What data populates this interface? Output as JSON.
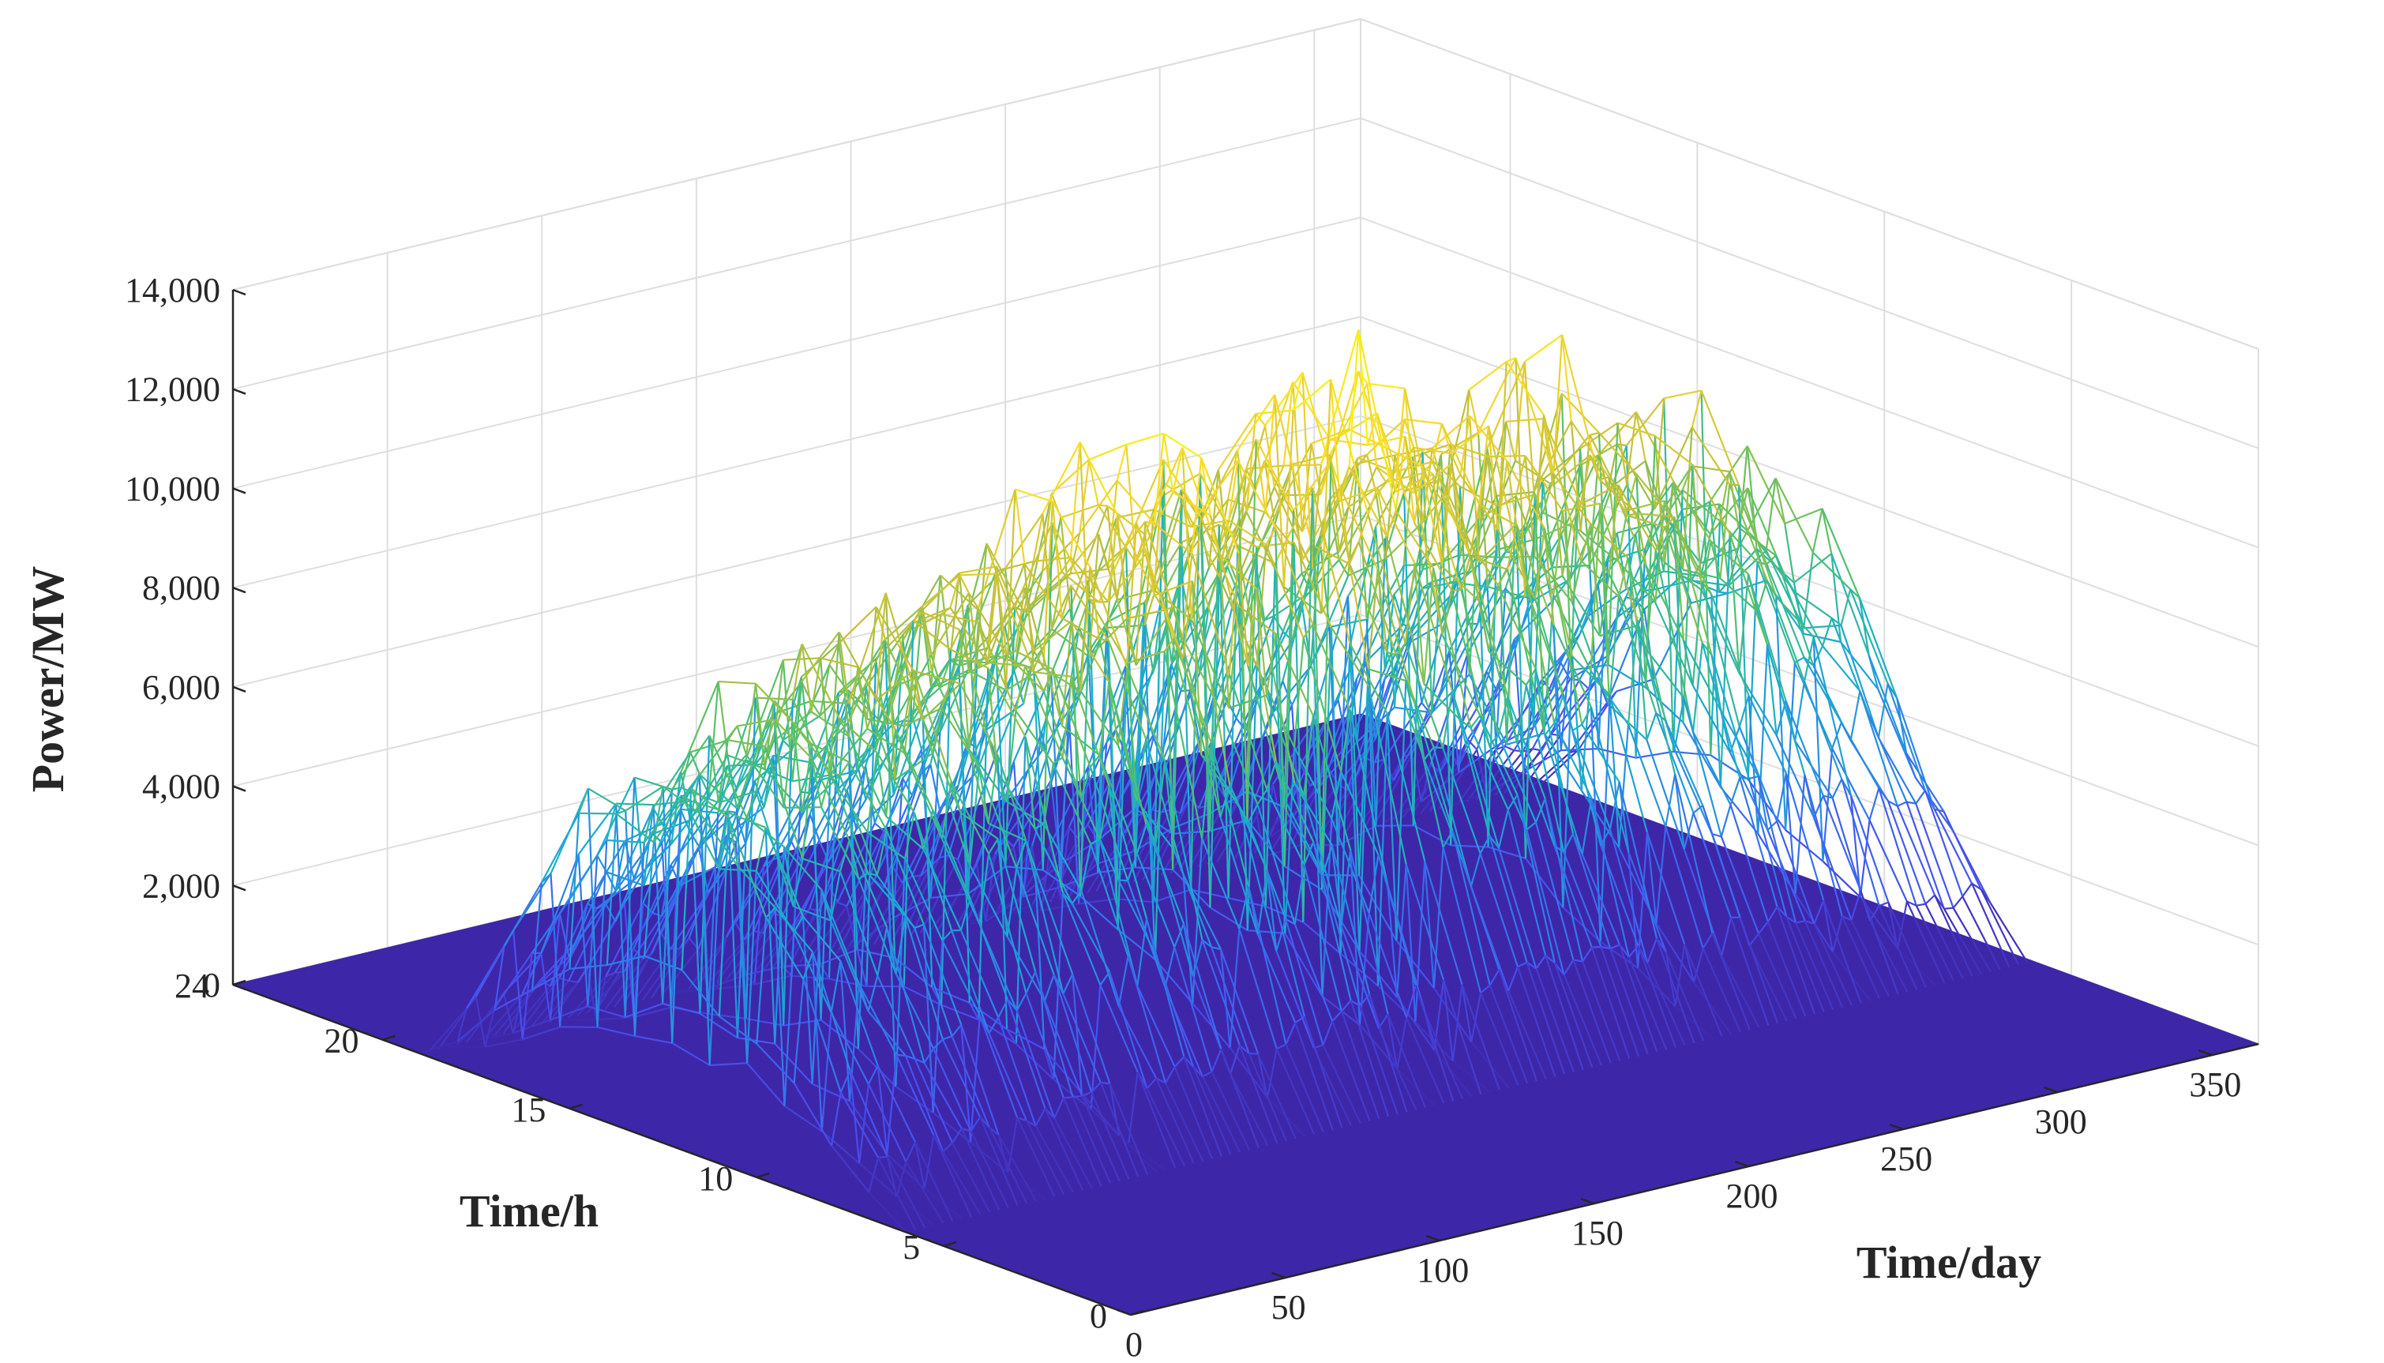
{
  "chart_data": {
    "type": "surface-mesh-3d",
    "title": "",
    "xlabel": "Time/day",
    "ylabel": "Time/h",
    "zlabel": "Power/MW",
    "xlim": [
      0,
      365
    ],
    "ylim": [
      0,
      24
    ],
    "zlim": [
      0,
      14000
    ],
    "x_ticks": [
      0,
      50,
      100,
      150,
      200,
      250,
      300,
      350
    ],
    "y_ticks": [
      0,
      5,
      10,
      15,
      20,
      24
    ],
    "z_ticks": [
      0,
      2000,
      4000,
      6000,
      8000,
      10000,
      12000,
      14000
    ],
    "z_tick_labels": [
      "0",
      "2,000",
      "4,000",
      "6,000",
      "8,000",
      "10,000",
      "12,000",
      "14,000"
    ],
    "colormap": [
      "#3e26a8",
      "#4850f0",
      "#2d83e8",
      "#1ab0c9",
      "#55c06a",
      "#c4c03a",
      "#f6d82c",
      "#f9fb0e"
    ],
    "grid": true,
    "series_description": "Hourly PV power per day: zero outside roughly 06:00-19:00, daily peak about 7,000-8,000 MW early in the year rising to about 11,000-12,500 MW mid-year",
    "daily_profile": {
      "sunrise_h": 6,
      "sunset_h": 19,
      "peak_h": 12.5
    },
    "seasonal_peak_MW": [
      {
        "day": 0,
        "peak": 7200
      },
      {
        "day": 30,
        "peak": 8000
      },
      {
        "day": 60,
        "peak": 9500
      },
      {
        "day": 100,
        "peak": 10500
      },
      {
        "day": 150,
        "peak": 11500
      },
      {
        "day": 200,
        "peak": 12000
      },
      {
        "day": 250,
        "peak": 11500
      },
      {
        "day": 300,
        "peak": 10500
      },
      {
        "day": 340,
        "peak": 9000
      },
      {
        "day": 365,
        "peak": 7500
      }
    ]
  }
}
